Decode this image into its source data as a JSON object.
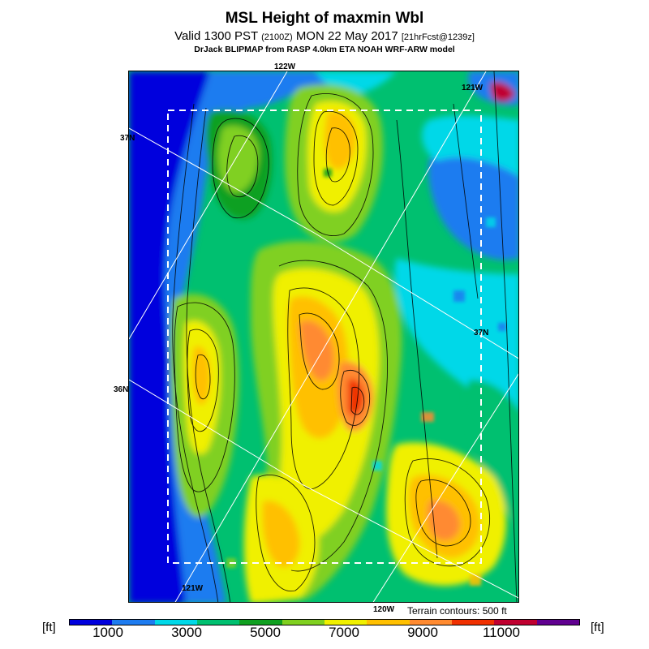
{
  "header": {
    "title": "MSL Height of maxmin Wbl",
    "subtitle_main": "Valid 1300 PST",
    "subtitle_utc": "(2100Z)",
    "subtitle_date": "MON 22 May 2017",
    "subtitle_forecast": "[21hrFcst@1239z]",
    "credit": "DrJack BLIPMAP from RASP 4.0km ETA NOAH WRF-ARW model"
  },
  "map": {
    "graticule_labels": {
      "lon_122w_top": "122W",
      "lon_121w": "121W",
      "lat_37n_left": "37N",
      "lat_37n_right": "37N",
      "lat_36n": "36N",
      "lon_121w_bottom": "121W",
      "lon_120w": "120W"
    },
    "terrain_note": "Terrain contours: 500 ft"
  },
  "legend": {
    "unit_left": "[ft]",
    "unit_right": "[ft]",
    "tick_labels": [
      "1000",
      "3000",
      "5000",
      "7000",
      "9000",
      "11000"
    ],
    "colors": [
      "#0000dd",
      "#1e7cf0",
      "#00d8e8",
      "#00c070",
      "#10a020",
      "#80d020",
      "#f0f000",
      "#ffc000",
      "#ff8a30",
      "#f03000",
      "#c00030",
      "#600090"
    ]
  }
}
